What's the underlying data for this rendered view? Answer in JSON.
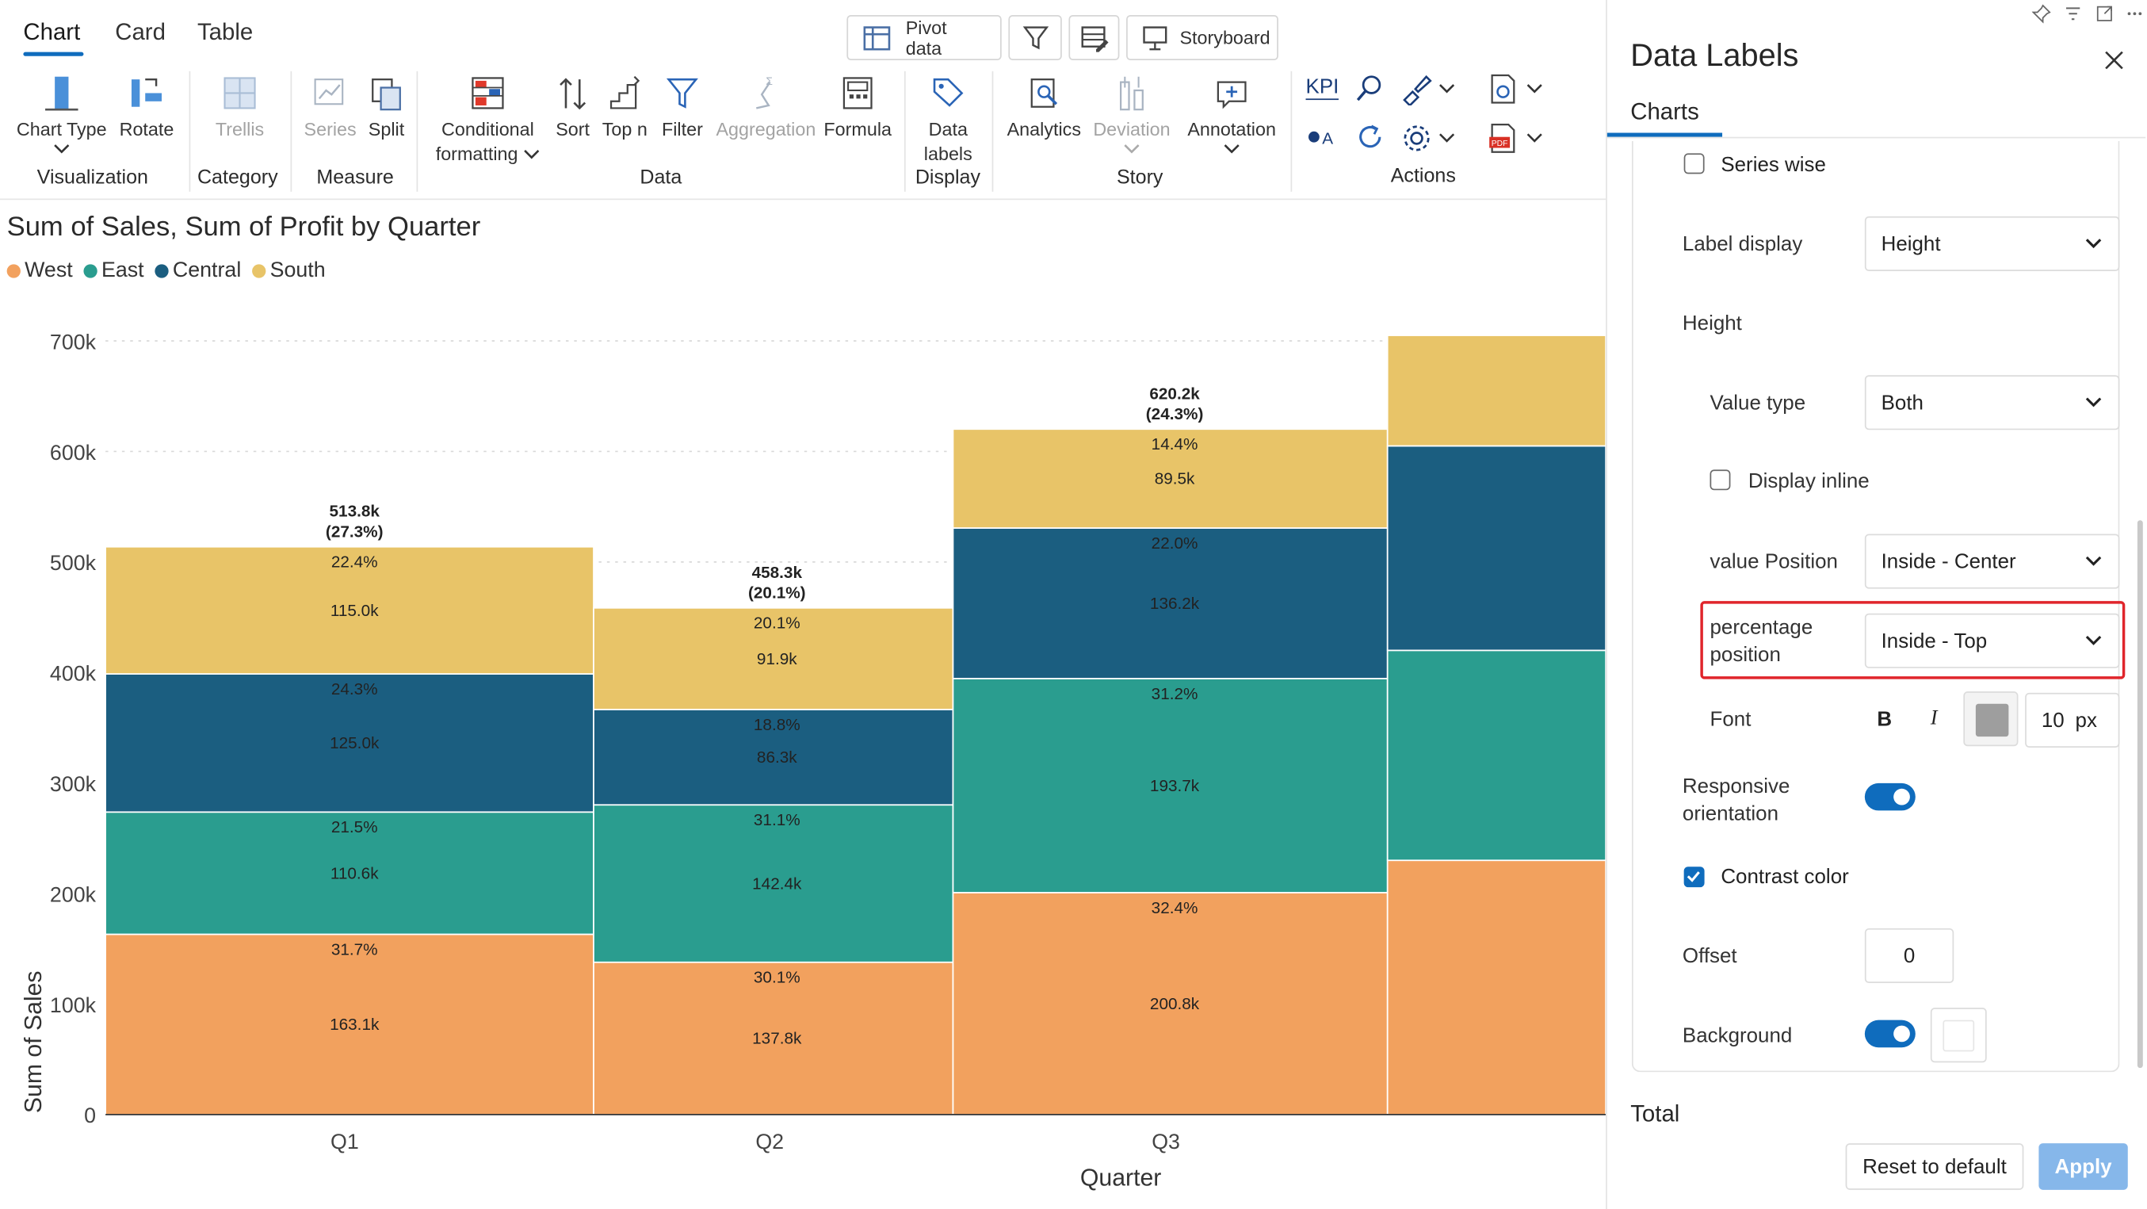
{
  "tabs": [
    "Chart",
    "Card",
    "Table"
  ],
  "top_buttons": {
    "pivot": "Pivot data",
    "storyboard": "Storyboard"
  },
  "ribbon": {
    "chart_type": "Chart Type",
    "rotate": "Rotate",
    "trellis": "Trellis",
    "series": "Series",
    "split": "Split",
    "conditional_formatting": [
      "Conditional",
      "formatting"
    ],
    "sort": "Sort",
    "top_n": "Top n",
    "filter": "Filter",
    "aggregation": "Aggregation",
    "formula": "Formula",
    "data_labels": [
      "Data",
      "labels"
    ],
    "analytics": "Analytics",
    "deviation": "Deviation",
    "annotation": "Annotation",
    "kpi": "KPI",
    "groups": {
      "visualization": "Visualization",
      "category": "Category",
      "measure": "Measure",
      "data": "Data",
      "display": "Display",
      "story": "Story",
      "actions": "Actions"
    }
  },
  "chart": {
    "title": "Sum of Sales, Sum of Profit by Quarter"
  },
  "chart_data": {
    "type": "bar",
    "stacked": true,
    "variable_width": true,
    "title": "Sum of Sales, Sum of Profit by Quarter",
    "xlabel": "Quarter",
    "ylabel": "Sum of Sales",
    "ylim": [
      0,
      700000
    ],
    "yticks": [
      "0",
      "100k",
      "200k",
      "300k",
      "400k",
      "500k",
      "600k",
      "700k"
    ],
    "grid": true,
    "legend_position": "top-left",
    "categories": [
      "Q1",
      "Q2",
      "Q3"
    ],
    "bar_widths_percent": [
      27.3,
      20.1,
      24.3
    ],
    "series": [
      {
        "name": "West",
        "color": "#F2A15E",
        "values": [
          163100,
          137800,
          200800
        ],
        "labels": [
          "163.1k",
          "137.8k",
          "200.8k"
        ],
        "percents": [
          "31.7%",
          "30.1%",
          "32.4%"
        ]
      },
      {
        "name": "East",
        "color": "#2A9D8F",
        "values": [
          110600,
          142400,
          193700
        ],
        "labels": [
          "110.6k",
          "142.4k",
          "193.7k"
        ],
        "percents": [
          "21.5%",
          "31.1%",
          "31.2%"
        ]
      },
      {
        "name": "Central",
        "color": "#1B5E80",
        "values": [
          125000,
          86300,
          136200
        ],
        "labels": [
          "125.0k",
          "86.3k",
          "136.2k"
        ],
        "percents": [
          "24.3%",
          "18.8%",
          "22.0%"
        ]
      },
      {
        "name": "South",
        "color": "#E8C468",
        "values": [
          115000,
          91900,
          89500
        ],
        "labels": [
          "115.0k",
          "91.9k",
          "89.5k"
        ],
        "percents": [
          "22.4%",
          "20.1%",
          "14.4%"
        ]
      }
    ],
    "totals": [
      "513.8k",
      "458.3k",
      "620.2k"
    ],
    "total_percents": [
      "(27.3%)",
      "(20.1%)",
      "(24.3%)"
    ]
  },
  "panel": {
    "title": "Data Labels",
    "tab": "Charts",
    "series_wise": "Series wise",
    "label_display": {
      "label": "Label display",
      "value": "Height"
    },
    "height_heading": "Height",
    "value_type": {
      "label": "Value type",
      "value": "Both"
    },
    "display_inline": "Display inline",
    "value_position": {
      "label": "value Position",
      "value": "Inside - Center"
    },
    "percentage_position": {
      "label_line1": "percentage",
      "label_line2": "position",
      "value": "Inside - Top"
    },
    "font": {
      "label": "Font",
      "bold": "B",
      "italic": "I",
      "size": "10",
      "unit": "px",
      "color": "#9E9E9E"
    },
    "responsive_orientation": {
      "line1": "Responsive",
      "line2": "orientation",
      "on": true
    },
    "contrast_color": {
      "label": "Contrast color",
      "checked": true
    },
    "offset": {
      "label": "Offset",
      "value": "0"
    },
    "background": {
      "label": "Background",
      "on": true
    },
    "total": "Total",
    "reset_button": "Reset to default",
    "apply_button": "Apply"
  }
}
